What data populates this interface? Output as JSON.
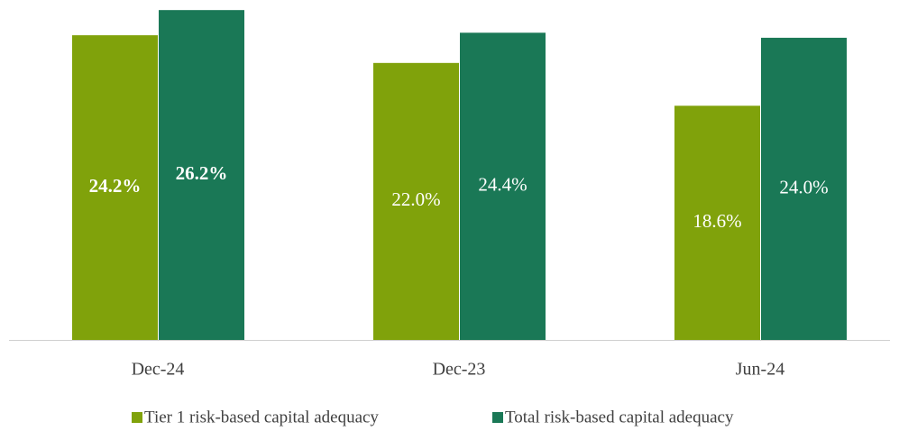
{
  "chart_data": {
    "type": "bar",
    "categories": [
      "Dec-24",
      "Dec-23",
      "Jun-24"
    ],
    "series": [
      {
        "name": "Tier 1 risk-based capital adequacy",
        "color": "#80a20b",
        "values": [
          24.2,
          22.0,
          18.6
        ],
        "value_labels": [
          "24.2%",
          "22.0%",
          "18.6%"
        ]
      },
      {
        "name": "Total risk-based capital adequacy",
        "color": "#1a7856",
        "values": [
          26.2,
          24.4,
          24.0
        ],
        "value_labels": [
          "26.2%",
          "24.4%",
          "24.0%"
        ]
      }
    ],
    "value_label_bold": [
      true,
      false,
      false
    ],
    "ylim": [
      0,
      27
    ],
    "legend": "bottom"
  }
}
